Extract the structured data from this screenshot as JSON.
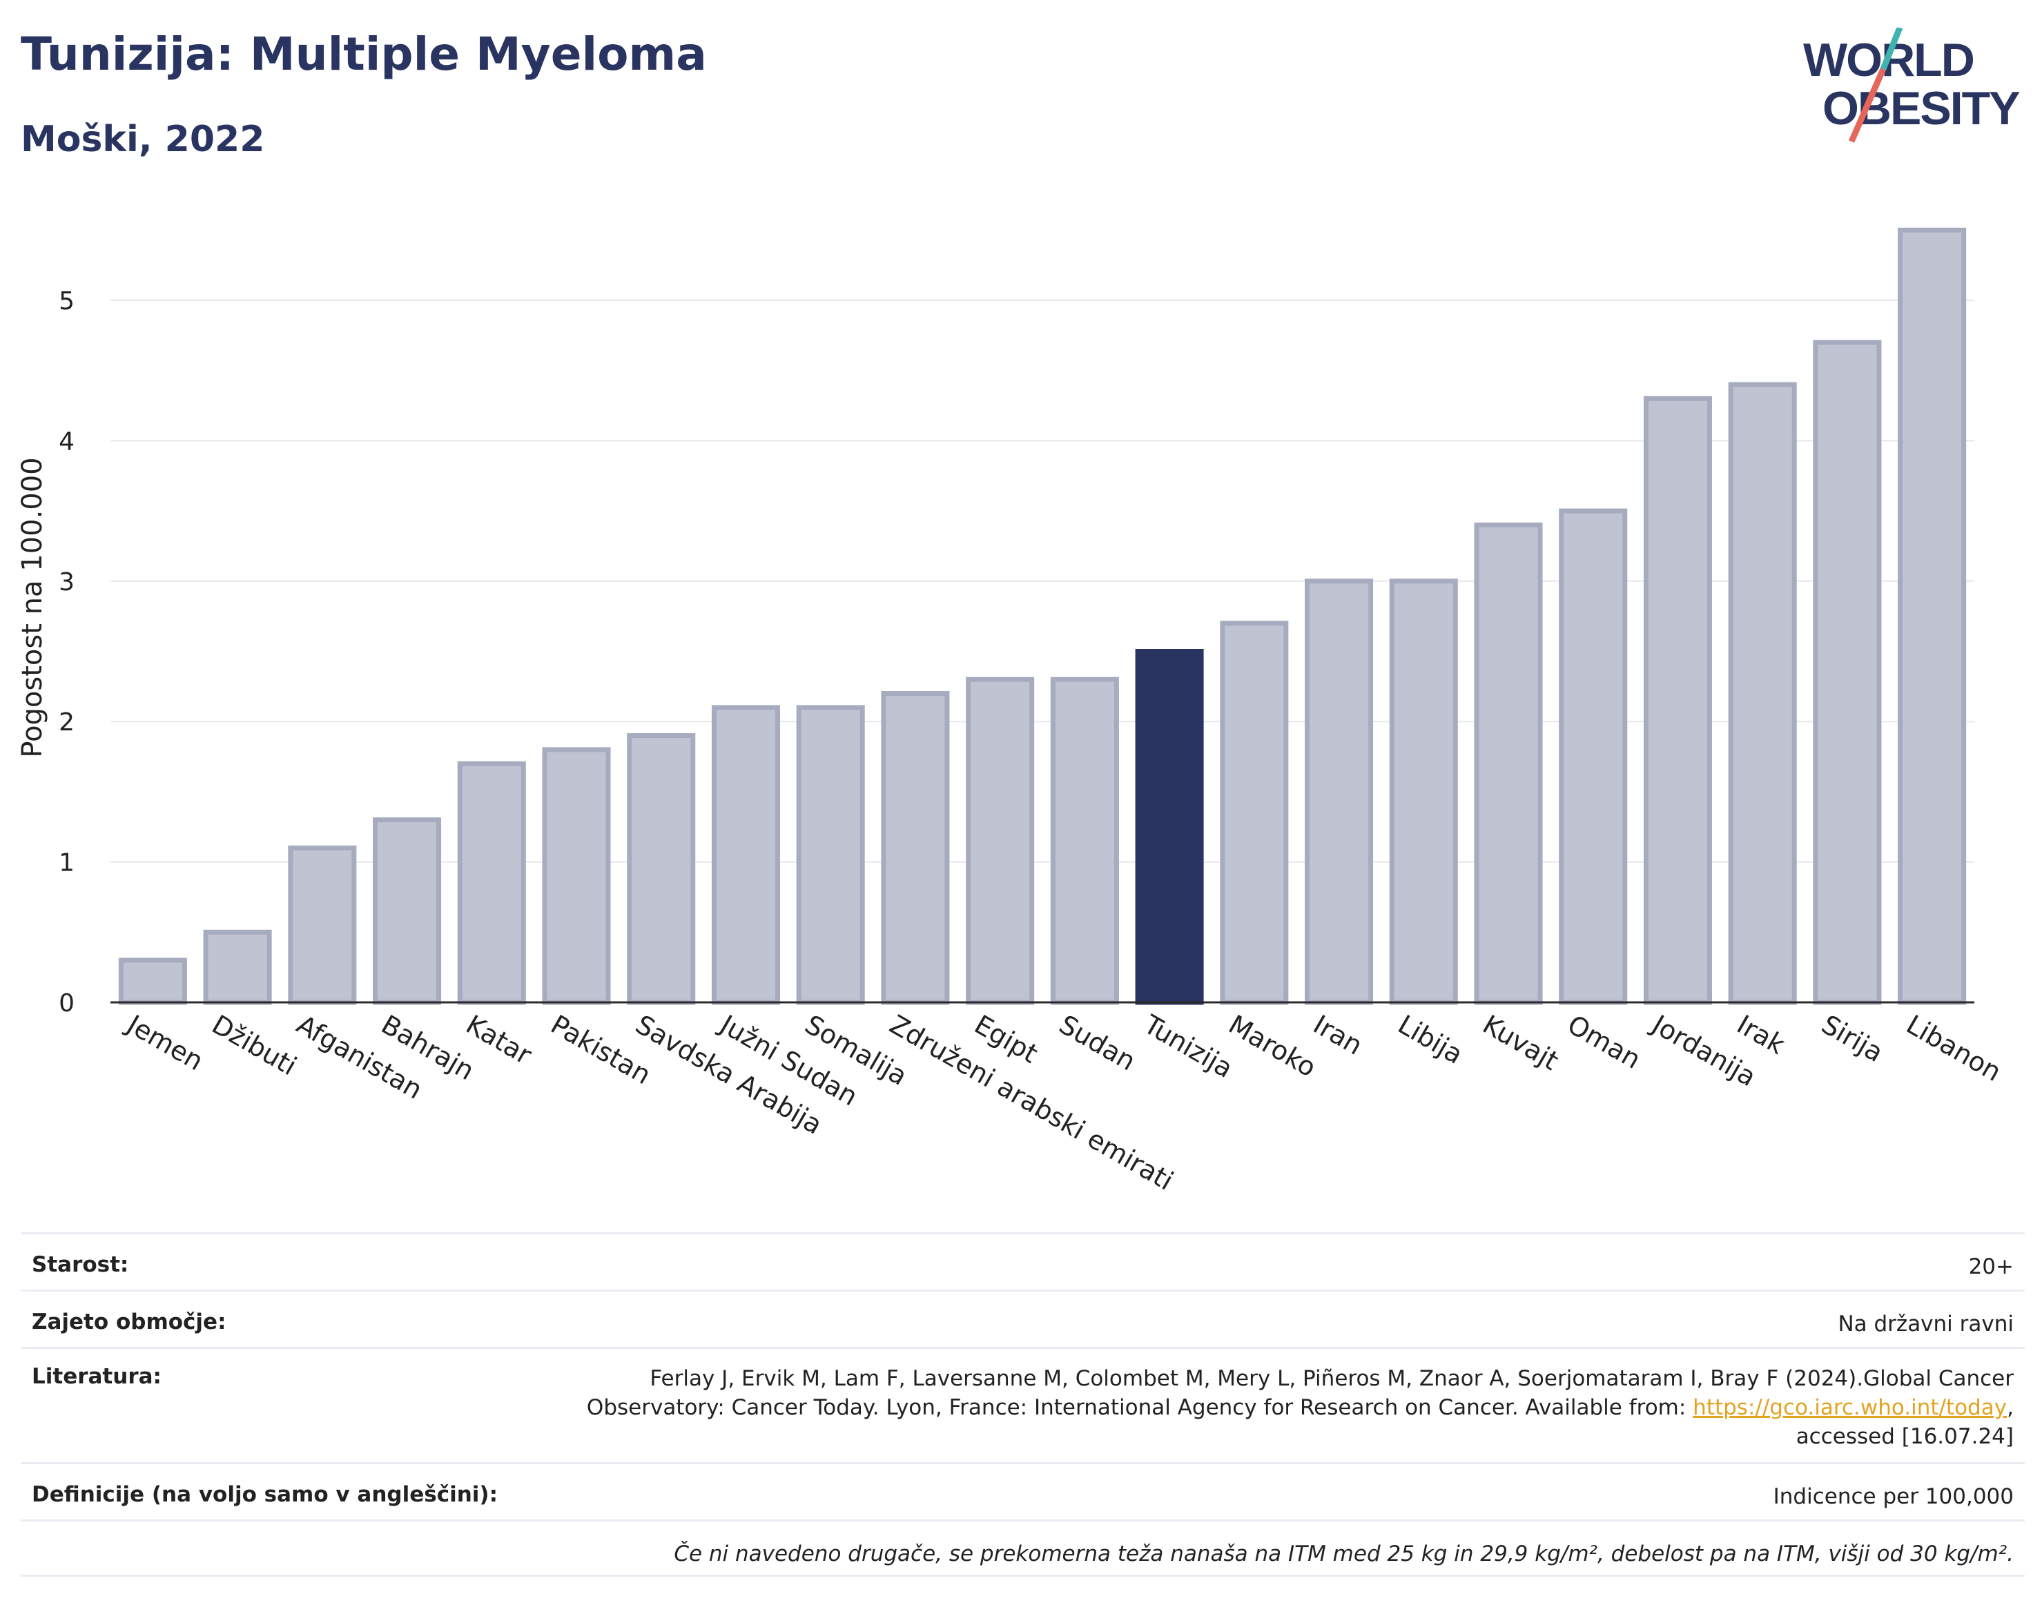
{
  "header": {
    "title": "Tunizija: Multiple Myeloma",
    "subtitle": "Moški, 2022"
  },
  "logo": {
    "line1": "WORLD",
    "line2": "OBESITY",
    "colors": {
      "text": "#2a3461",
      "slash_teal": "#3fb3b0",
      "slash_red": "#e4675a"
    }
  },
  "colors": {
    "bar_default": "#c0c3d1",
    "bar_default_border": "#a7abbf",
    "bar_highlight": "#2a3461",
    "grid": "#e6e8ee",
    "axis": "#2a2a2a"
  },
  "chart_data": {
    "type": "bar",
    "title": "Tunizija: Multiple Myeloma",
    "subtitle": "Moški, 2022",
    "xlabel": "",
    "ylabel": "Pogostost na 100.000",
    "ylim": [
      0,
      5.7
    ],
    "yticks": [
      0,
      1,
      2,
      3,
      4,
      5
    ],
    "grid": true,
    "highlight": "Tunizija",
    "categories": [
      "Jemen",
      "Džibuti",
      "Afganistan",
      "Bahrajn",
      "Katar",
      "Pakistan",
      "Savdska Arabija",
      "Južni Sudan",
      "Somalija",
      "Združeni arabski emirati",
      "Egipt",
      "Sudan",
      "Tunizija",
      "Maroko",
      "Iran",
      "Libija",
      "Kuvajt",
      "Oman",
      "Jordanija",
      "Irak",
      "Sirija",
      "Libanon"
    ],
    "values": [
      0.3,
      0.5,
      1.1,
      1.3,
      1.7,
      1.8,
      1.9,
      2.1,
      2.1,
      2.2,
      2.3,
      2.3,
      2.5,
      2.7,
      3.0,
      3.0,
      3.4,
      3.5,
      4.3,
      4.4,
      4.7,
      5.5
    ]
  },
  "info": {
    "age_label": "Starost:",
    "age_value": "20+",
    "coverage_label": "Zajeto območje:",
    "coverage_value": "Na državni ravni",
    "ref_label": "Literatura:",
    "ref_line1": "Ferlay J, Ervik M, Lam F, Laversanne M, Colombet M, Mery L, Piñeros M, Znaor A, Soerjomataram I, Bray F (2024).Global Cancer",
    "ref_line2_pre": "Observatory: Cancer Today. Lyon, France: International Agency for Research on Cancer. Available from: ",
    "ref_link": "https://gco.iarc.who.int/today",
    "ref_line2_post": ",",
    "ref_line3": "accessed [16.07.24]",
    "def_label": "Definicije (na voljo samo v angleščini):",
    "def_value": "Indicence per 100,000",
    "note": "Če ni navedeno drugače, se prekomerna teža nanaša na ITM med 25 kg in 29,9 kg/m², debelost pa na ITM, višji od 30 kg/m²."
  }
}
